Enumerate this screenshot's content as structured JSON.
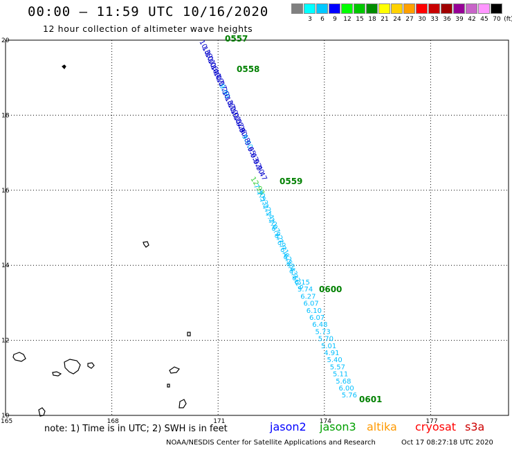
{
  "header": {
    "title": "00:00 – 11:59 UTC 10/16/2020",
    "subtitle": "12 hour collection of altimeter wave heights"
  },
  "legend": {
    "unit": "(ft)",
    "bins": [
      {
        "label": "",
        "color": "#808080"
      },
      {
        "label": "3",
        "color": "#00ffff"
      },
      {
        "label": "6",
        "color": "#00c8ff"
      },
      {
        "label": "9",
        "color": "#0000ff"
      },
      {
        "label": "12",
        "color": "#00ff00"
      },
      {
        "label": "15",
        "color": "#00c800"
      },
      {
        "label": "18",
        "color": "#008c00"
      },
      {
        "label": "21",
        "color": "#ffff00"
      },
      {
        "label": "24",
        "color": "#ffd200"
      },
      {
        "label": "27",
        "color": "#ffa000"
      },
      {
        "label": "30",
        "color": "#ff0000"
      },
      {
        "label": "33",
        "color": "#c80000"
      },
      {
        "label": "36",
        "color": "#a00000"
      },
      {
        "label": "39",
        "color": "#960096"
      },
      {
        "label": "42",
        "color": "#c864c8"
      },
      {
        "label": "45",
        "color": "#ff96ff"
      },
      {
        "label": "70",
        "color": "#000000"
      }
    ]
  },
  "map": {
    "lat_labels": [
      "20",
      "18",
      "16",
      "14",
      "12",
      "10"
    ],
    "lon_labels": [
      "165",
      "168",
      "171",
      "174",
      "177"
    ],
    "time_labels": [
      "0557",
      "0558",
      "0559",
      "0600",
      "0601"
    ],
    "track_colors": {
      "dark": "#0000cc",
      "light": "#00bfff",
      "green": "#008000",
      "lightgreen": "#32cd32"
    },
    "swh_readings": [
      {
        "value": "10.39",
        "color": "#0000cc"
      },
      {
        "value": "10.01",
        "color": "#0000cc"
      },
      {
        "value": "10.06",
        "color": "#0000cc"
      },
      {
        "value": "10.44",
        "color": "#0000cc"
      },
      {
        "value": "10.17",
        "color": "#0000cc"
      },
      {
        "value": "10.37",
        "color": "#0000cc"
      },
      {
        "value": "10.29",
        "color": "#0000cc"
      },
      {
        "value": "9.99",
        "color": "#00bfff"
      },
      {
        "value": "10.37",
        "color": "#0000cc"
      },
      {
        "value": "10.22",
        "color": "#0000cc"
      },
      {
        "value": "10.01",
        "color": "#0000cc"
      },
      {
        "value": "10.52",
        "color": "#0000cc"
      },
      {
        "value": "10.26",
        "color": "#0000cc"
      },
      {
        "value": "9.80",
        "color": "#0000cc"
      },
      {
        "value": "9.48",
        "color": "#0000cc"
      },
      {
        "value": "9.60",
        "color": "#00bfff"
      },
      {
        "value": "9.65",
        "color": "#0000cc"
      },
      {
        "value": "9.63",
        "color": "#0000cc"
      },
      {
        "value": "9.52",
        "color": "#0000cc"
      },
      {
        "value": "9.70",
        "color": "#0000cc"
      },
      {
        "value": "9.47",
        "color": "#0000cc"
      },
      {
        "value": "12.93",
        "color": "#32cd32"
      },
      {
        "value": "7.30",
        "color": "#00bfff"
      },
      {
        "value": "7.53",
        "color": "#00bfff"
      },
      {
        "value": "7.22",
        "color": "#00bfff"
      },
      {
        "value": "7.14",
        "color": "#00bfff"
      },
      {
        "value": "7.20",
        "color": "#00bfff"
      },
      {
        "value": "7.07",
        "color": "#00bfff"
      },
      {
        "value": "6.92",
        "color": "#00bfff"
      },
      {
        "value": "6.79",
        "color": "#00bfff"
      },
      {
        "value": "6.71",
        "color": "#00bfff"
      },
      {
        "value": "6.62",
        "color": "#00bfff"
      },
      {
        "value": "6.58",
        "color": "#00bfff"
      },
      {
        "value": "6.43",
        "color": "#00bfff"
      },
      {
        "value": "6.37",
        "color": "#00bfff"
      },
      {
        "value": "6.29",
        "color": "#00bfff"
      },
      {
        "value": "6.15",
        "color": "#00bfff"
      },
      {
        "value": "5.74",
        "color": "#00bfff"
      },
      {
        "value": "6.27",
        "color": "#00bfff"
      },
      {
        "value": "6.07",
        "color": "#00bfff"
      },
      {
        "value": "6.10",
        "color": "#00bfff"
      },
      {
        "value": "6.07",
        "color": "#00bfff"
      },
      {
        "value": "6.48",
        "color": "#00bfff"
      },
      {
        "value": "5.73",
        "color": "#00bfff"
      },
      {
        "value": "5.70",
        "color": "#00bfff"
      },
      {
        "value": "5.01",
        "color": "#00bfff"
      },
      {
        "value": "4.91",
        "color": "#00bfff"
      },
      {
        "value": "5.40",
        "color": "#00bfff"
      },
      {
        "value": "5.57",
        "color": "#00bfff"
      },
      {
        "value": "5.11",
        "color": "#00bfff"
      },
      {
        "value": "5.68",
        "color": "#00bfff"
      },
      {
        "value": "6.00",
        "color": "#00bfff"
      },
      {
        "value": "5.76",
        "color": "#00bfff"
      }
    ]
  },
  "footer": {
    "note": "note: 1) Time is in UTC; 2) SWH is in feet",
    "satellites": [
      {
        "name": "jason2",
        "color": "#0000ff"
      },
      {
        "name": "jason3",
        "color": "#00a000"
      },
      {
        "name": "altika",
        "color": "#ff9900"
      },
      {
        "name": "cryosat",
        "color": "#ff0000"
      },
      {
        "name": "s3a",
        "color": "#cc0000"
      }
    ],
    "credit": "NOAA/NESDIS Center for Satellite Applications and Research",
    "timestamp": "Oct 17 08:27:18 UTC 2020"
  }
}
